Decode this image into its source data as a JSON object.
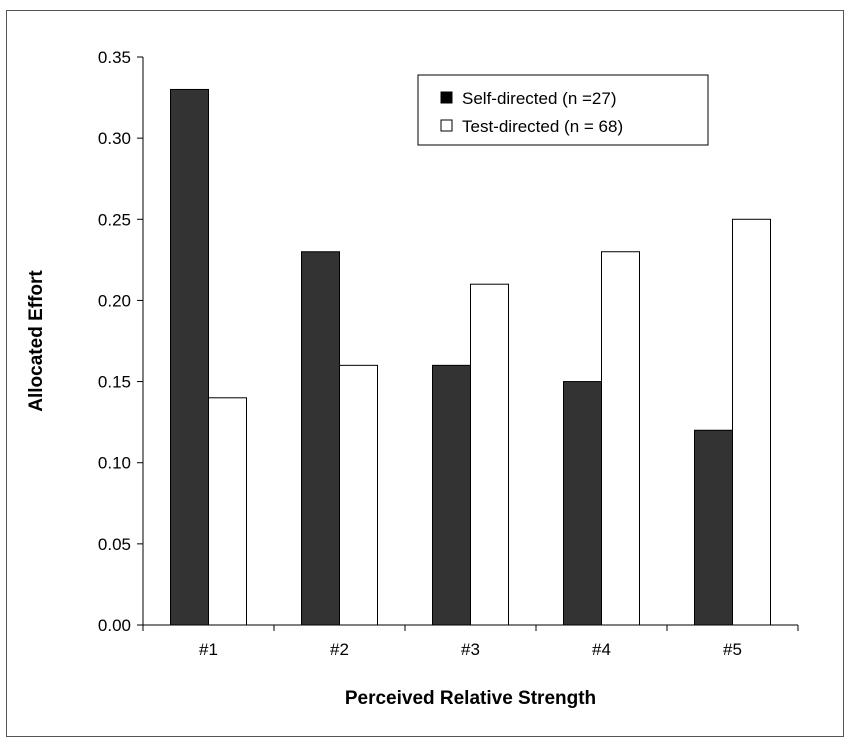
{
  "chart_data": {
    "type": "bar",
    "title": "",
    "xlabel": "Perceived Relative Strength",
    "ylabel": "Allocated Effort",
    "categories": [
      "#1",
      "#2",
      "#3",
      "#4",
      "#5"
    ],
    "series": [
      {
        "name": "Self-directed (n =27)",
        "values": [
          0.33,
          0.23,
          0.16,
          0.15,
          0.12
        ],
        "color": "#333333"
      },
      {
        "name": "Test-directed (n = 68)",
        "values": [
          0.14,
          0.16,
          0.21,
          0.23,
          0.25
        ],
        "color": "#ffffff"
      }
    ],
    "ylim": [
      0,
      0.35
    ],
    "yticks": [
      "0.00",
      "0.05",
      "0.10",
      "0.15",
      "0.20",
      "0.25",
      "0.30",
      "0.35"
    ],
    "grid": false,
    "legend_position": "top-right"
  }
}
